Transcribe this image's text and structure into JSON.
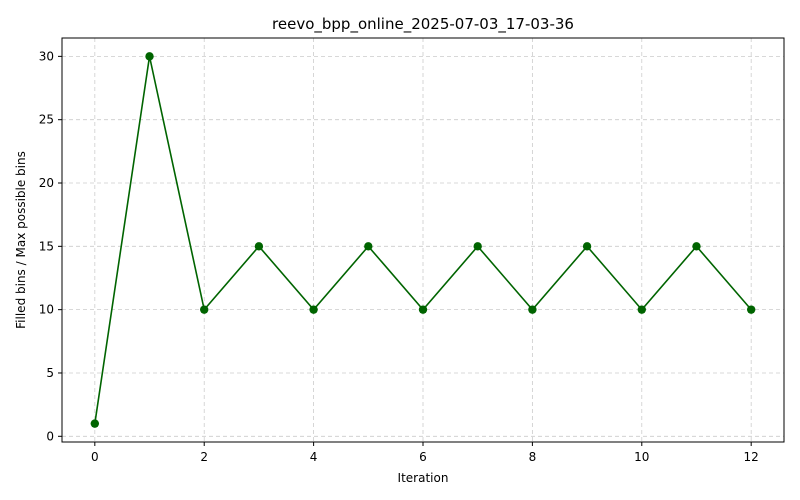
{
  "chart_data": {
    "type": "line",
    "title": "reevo_bpp_online_2025-07-03_17-03-36",
    "xlabel": "Iteration",
    "ylabel": "Filled bins / Max possible bins",
    "x": [
      0,
      1,
      2,
      3,
      4,
      5,
      6,
      7,
      8,
      9,
      10,
      11,
      12
    ],
    "series": [
      {
        "values": [
          1,
          30,
          10,
          15,
          10,
          15,
          10,
          15,
          10,
          15,
          10,
          15,
          10
        ],
        "color": "#006400",
        "marker": "circle"
      }
    ],
    "xticks": [
      0,
      2,
      4,
      6,
      8,
      10,
      12
    ],
    "yticks": [
      0,
      5,
      10,
      15,
      20,
      25,
      30
    ],
    "xlim": [
      -0.6,
      12.6
    ],
    "ylim": [
      -0.45,
      31.45
    ],
    "grid": true,
    "legend": "none"
  }
}
